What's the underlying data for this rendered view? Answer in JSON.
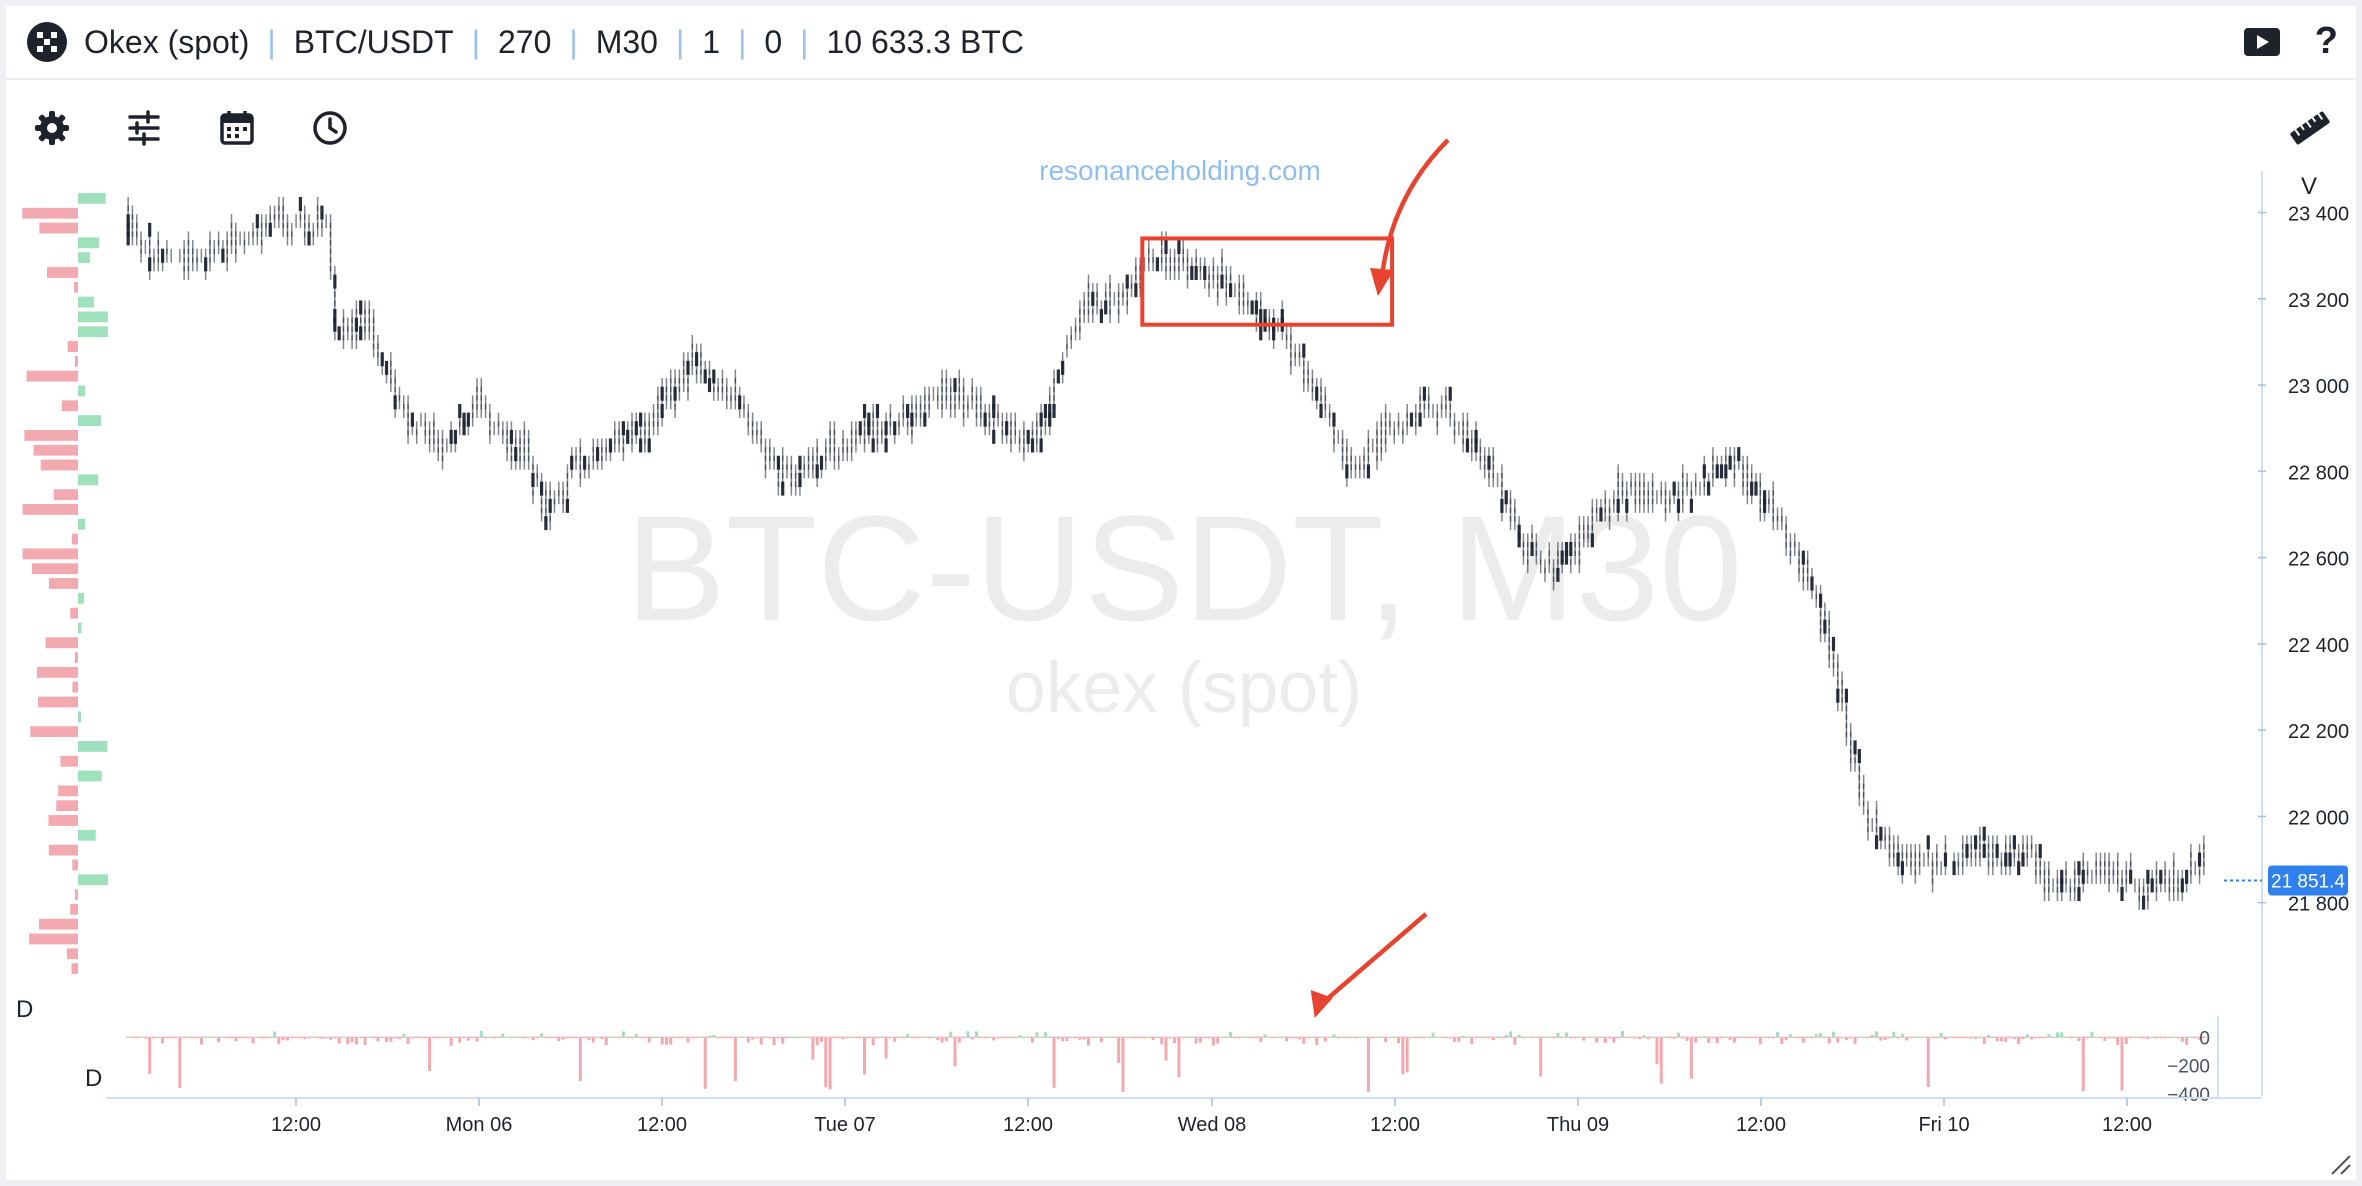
{
  "header": {
    "exchange": "Okex (spot)",
    "symbol": "BTC/USDT",
    "bars": "270",
    "timeframe": "M30",
    "param1": "1",
    "param2": "0",
    "volume": "10 633.3 BTC",
    "separator": "|"
  },
  "icons": {
    "logo": "okex-logo-icon",
    "video": "video-play-icon",
    "help": "help-icon",
    "settings": "gear-icon",
    "sliders": "sliders-icon",
    "calendar": "calendar-icon",
    "clock": "clock-icon",
    "ruler": "ruler-icon"
  },
  "help_label": "?",
  "colors": {
    "accent": "#2f80ed",
    "buy": "#9fe0bd",
    "sell": "#f3a9b0",
    "tick": "#1c2230",
    "annotation": "#e8432e",
    "link": "#8ebff0"
  },
  "chart_data": {
    "type": "cluster",
    "watermark": "BTC-USDT, M30",
    "watermark_sub": "okex (spot)",
    "site": "resonanceholding.com",
    "ylim": [
      21630,
      23450
    ],
    "y_ticks": [
      "23 400",
      "23 200",
      "23 000",
      "22 800",
      "22 600",
      "22 400",
      "22 200",
      "22 000",
      "21 800"
    ],
    "y_tick_values": [
      23400,
      23200,
      23000,
      22800,
      22600,
      22400,
      22200,
      22000,
      21800
    ],
    "y_axis_label": "V",
    "last_price": "21 851.4",
    "last_price_value": 21851.4,
    "x_ticks": [
      "12:00",
      "Mon 06",
      "12:00",
      "Tue 07",
      "12:00",
      "Wed 08",
      "12:00",
      "Thu 09",
      "12:00",
      "Fri 10",
      "12:00"
    ],
    "delta_label": "D",
    "delta_ticks": [
      "0",
      "−200",
      "−400"
    ],
    "delta_tick_values": [
      0,
      -200,
      -400
    ],
    "delta_ylim": [
      -430,
      80
    ],
    "price_path": [
      [
        0,
        23390
      ],
      [
        5,
        23300
      ],
      [
        20,
        23310
      ],
      [
        35,
        23380
      ],
      [
        46,
        23360
      ],
      [
        48,
        23120
      ],
      [
        55,
        23150
      ],
      [
        63,
        22950
      ],
      [
        72,
        22850
      ],
      [
        80,
        22950
      ],
      [
        86,
        22900
      ],
      [
        92,
        22840
      ],
      [
        97,
        22700
      ],
      [
        103,
        22800
      ],
      [
        110,
        22850
      ],
      [
        120,
        22900
      ],
      [
        131,
        23050
      ],
      [
        140,
        22980
      ],
      [
        146,
        22880
      ],
      [
        152,
        22780
      ],
      [
        160,
        22830
      ],
      [
        170,
        22880
      ],
      [
        180,
        22920
      ],
      [
        190,
        22990
      ],
      [
        198,
        22950
      ],
      [
        210,
        22870
      ],
      [
        222,
        23200
      ],
      [
        228,
        23190
      ],
      [
        236,
        23280
      ],
      [
        240,
        23310
      ],
      [
        248,
        23260
      ],
      [
        256,
        23240
      ],
      [
        262,
        23160
      ],
      [
        266,
        23150
      ],
      [
        272,
        23050
      ],
      [
        279,
        22900
      ],
      [
        284,
        22800
      ],
      [
        290,
        22870
      ],
      [
        300,
        22950
      ],
      [
        306,
        22940
      ],
      [
        314,
        22850
      ],
      [
        324,
        22620
      ],
      [
        330,
        22580
      ],
      [
        338,
        22650
      ],
      [
        346,
        22760
      ],
      [
        356,
        22740
      ],
      [
        365,
        22770
      ],
      [
        372,
        22830
      ],
      [
        378,
        22760
      ],
      [
        386,
        22620
      ],
      [
        390,
        22560
      ],
      [
        396,
        22360
      ],
      [
        400,
        22150
      ],
      [
        404,
        21980
      ],
      [
        410,
        21910
      ],
      [
        420,
        21880
      ],
      [
        430,
        21930
      ],
      [
        440,
        21900
      ],
      [
        448,
        21850
      ],
      [
        458,
        21880
      ],
      [
        468,
        21830
      ],
      [
        477,
        21860
      ],
      [
        482,
        21900
      ]
    ],
    "volume_profile_rows": 53,
    "annotation_box": {
      "from_bar": 236,
      "to_bar": 294,
      "price_low": 23140,
      "price_high": 23340
    },
    "delta_highlight_bar": 276
  }
}
